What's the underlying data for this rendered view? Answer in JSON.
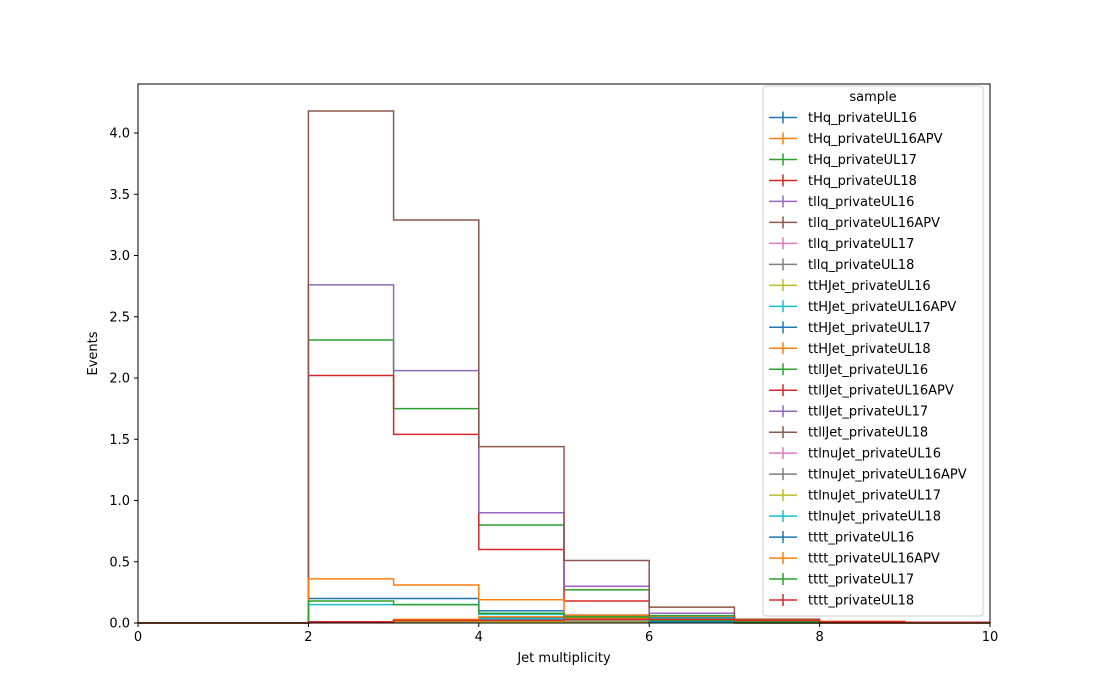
{
  "chart_data": {
    "type": "step-histogram",
    "xlabel": "Jet multiplicity",
    "ylabel": "Events",
    "xlim": [
      0,
      10
    ],
    "ylim": [
      0,
      4.4
    ],
    "x_ticks": [
      "0",
      "2",
      "4",
      "6",
      "8",
      "10"
    ],
    "y_ticks": [
      "0.0",
      "0.5",
      "1.0",
      "1.5",
      "2.0",
      "2.5",
      "3.0",
      "3.5",
      "4.0"
    ],
    "bin_edges": [
      0,
      1,
      2,
      3,
      4,
      5,
      6,
      7,
      8,
      9,
      10
    ],
    "grid": false,
    "legend": {
      "title": "sample",
      "placement": "top-right"
    },
    "series": [
      {
        "name": "tHq_privateUL16",
        "color": "#1f77b4",
        "values": [
          0,
          0,
          0.005,
          0.008,
          0.006,
          0.004,
          0.002,
          0.001,
          0,
          0
        ]
      },
      {
        "name": "tHq_privateUL16APV",
        "color": "#ff7f0e",
        "values": [
          0,
          0,
          0.005,
          0.007,
          0.006,
          0.003,
          0.002,
          0.001,
          0,
          0
        ]
      },
      {
        "name": "tHq_privateUL17",
        "color": "#2ca02c",
        "values": [
          0,
          0,
          0.006,
          0.01,
          0.008,
          0.005,
          0.002,
          0.001,
          0,
          0
        ]
      },
      {
        "name": "tHq_privateUL18",
        "color": "#d62728",
        "values": [
          0,
          0,
          0.007,
          0.012,
          0.01,
          0.006,
          0.003,
          0.001,
          0,
          0
        ]
      },
      {
        "name": "tllq_privateUL16",
        "color": "#9467bd",
        "values": [
          0,
          0,
          0.003,
          0.012,
          0.015,
          0.01,
          0.005,
          0.002,
          0,
          0
        ]
      },
      {
        "name": "tllq_privateUL16APV",
        "color": "#8c564b",
        "values": [
          0,
          0,
          0.003,
          0.012,
          0.015,
          0.01,
          0.005,
          0.002,
          0,
          0
        ]
      },
      {
        "name": "tllq_privateUL17",
        "color": "#e377c2",
        "values": [
          0,
          0,
          0.004,
          0.015,
          0.02,
          0.012,
          0.006,
          0.002,
          0,
          0
        ]
      },
      {
        "name": "tllq_privateUL18",
        "color": "#7f7f7f",
        "values": [
          0,
          0,
          0.005,
          0.02,
          0.025,
          0.015,
          0.008,
          0.003,
          0,
          0
        ]
      },
      {
        "name": "ttHJet_privateUL16",
        "color": "#bcbd22",
        "values": [
          0,
          0,
          0.002,
          0.02,
          0.035,
          0.05,
          0.045,
          0.025,
          0.01,
          0.003
        ]
      },
      {
        "name": "ttHJet_privateUL16APV",
        "color": "#17becf",
        "values": [
          0,
          0,
          0.002,
          0.02,
          0.035,
          0.045,
          0.04,
          0.022,
          0.009,
          0.003
        ]
      },
      {
        "name": "ttHJet_privateUL17",
        "color": "#1f77b4",
        "values": [
          0,
          0,
          0.003,
          0.025,
          0.045,
          0.06,
          0.05,
          0.03,
          0.012,
          0.004
        ]
      },
      {
        "name": "ttHJet_privateUL18",
        "color": "#ff7f0e",
        "values": [
          0,
          0,
          0.004,
          0.03,
          0.05,
          0.065,
          0.055,
          0.032,
          0.013,
          0.004
        ]
      },
      {
        "name": "ttllJet_privateUL16",
        "color": "#2ca02c",
        "values": [
          0,
          0,
          2.31,
          1.75,
          0.8,
          0.27,
          0.06,
          0.01,
          0,
          0
        ]
      },
      {
        "name": "ttllJet_privateUL16APV",
        "color": "#d62728",
        "values": [
          0,
          0,
          2.02,
          1.54,
          0.6,
          0.18,
          0.03,
          0.005,
          0,
          0
        ]
      },
      {
        "name": "ttllJet_privateUL17",
        "color": "#9467bd",
        "values": [
          0,
          0,
          2.76,
          2.06,
          0.9,
          0.3,
          0.08,
          0.02,
          0,
          0
        ]
      },
      {
        "name": "ttllJet_privateUL18",
        "color": "#8c564b",
        "values": [
          0,
          0,
          4.18,
          3.29,
          1.44,
          0.51,
          0.13,
          0.03,
          0,
          0
        ]
      },
      {
        "name": "ttlnuJet_privateUL16",
        "color": "#e377c2",
        "values": [
          0,
          0,
          0.005,
          0.01,
          0.008,
          0.004,
          0.002,
          0.001,
          0,
          0
        ]
      },
      {
        "name": "ttlnuJet_privateUL16APV",
        "color": "#7f7f7f",
        "values": [
          0,
          0,
          0.005,
          0.01,
          0.008,
          0.004,
          0.002,
          0.001,
          0,
          0
        ]
      },
      {
        "name": "ttlnuJet_privateUL17",
        "color": "#bcbd22",
        "values": [
          0,
          0,
          0.006,
          0.012,
          0.01,
          0.005,
          0.002,
          0.001,
          0,
          0
        ]
      },
      {
        "name": "ttlnuJet_privateUL18",
        "color": "#17becf",
        "values": [
          0,
          0,
          0.15,
          0.15,
          0.07,
          0.03,
          0.01,
          0.003,
          0,
          0
        ]
      },
      {
        "name": "tttt_privateUL16",
        "color": "#1f77b4",
        "values": [
          0,
          0,
          0.2,
          0.2,
          0.1,
          0.04,
          0.012,
          0.004,
          0,
          0
        ]
      },
      {
        "name": "tttt_privateUL16APV",
        "color": "#ff7f0e",
        "values": [
          0,
          0,
          0.36,
          0.31,
          0.19,
          0.04,
          0.03,
          0.02,
          0,
          0
        ]
      },
      {
        "name": "tttt_privateUL17",
        "color": "#2ca02c",
        "values": [
          0,
          0,
          0.18,
          0.15,
          0.08,
          0.05,
          0.02,
          0.01,
          0.005,
          0.002
        ]
      },
      {
        "name": "tttt_privateUL18",
        "color": "#d62728",
        "values": [
          0,
          0,
          0.01,
          0.02,
          0.02,
          0.03,
          0.03,
          0.02,
          0.01,
          0.005
        ]
      }
    ]
  }
}
